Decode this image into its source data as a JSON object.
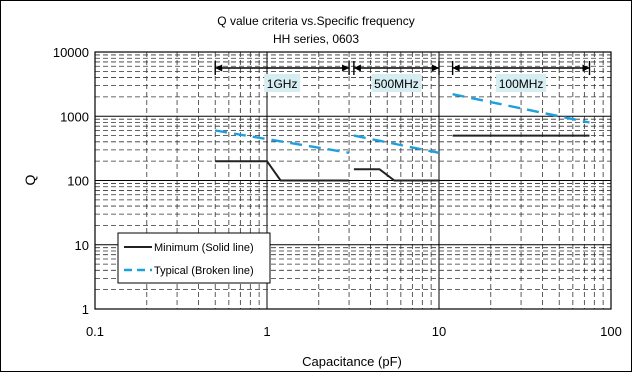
{
  "chart_data": {
    "type": "line",
    "title": "Q value criteria vs.Specific frequency",
    "subtitle": "HH series, 0603",
    "xlabel": "Capacitance (pF)",
    "ylabel": "Q",
    "xscale": "log",
    "yscale": "log",
    "xlim": [
      0.1,
      100
    ],
    "ylim": [
      1,
      10000
    ],
    "x_ticks": [
      {
        "value": 0.1,
        "label": "0.1"
      },
      {
        "value": 1,
        "label": "1"
      },
      {
        "value": 10,
        "label": "10"
      },
      {
        "value": 100,
        "label": "100"
      }
    ],
    "y_ticks": [
      {
        "value": 1,
        "label": "1"
      },
      {
        "value": 10,
        "label": "10"
      },
      {
        "value": 100,
        "label": "100"
      },
      {
        "value": 1000,
        "label": "1000"
      },
      {
        "value": 10000,
        "label": "10000"
      }
    ],
    "grid": true,
    "legend_position": "bottom-left",
    "frequency_ranges": [
      {
        "label": "1GHz",
        "x": [
          0.5,
          3
        ]
      },
      {
        "label": "500MHz",
        "x": [
          3.2,
          10
        ]
      },
      {
        "label": "100MHz",
        "x": [
          12,
          75
        ]
      }
    ],
    "series": [
      {
        "name": "Minimum (Solid line)",
        "style": "solid",
        "color": "#222222",
        "segments": [
          [
            [
              0.5,
              200
            ],
            [
              1,
              200
            ],
            [
              1.2,
              100
            ],
            [
              3,
              100
            ]
          ],
          [
            [
              3.2,
              150
            ],
            [
              4.5,
              150
            ],
            [
              5.5,
              100
            ],
            [
              10,
              100
            ]
          ],
          [
            [
              12,
              500
            ],
            [
              75,
              500
            ]
          ]
        ]
      },
      {
        "name": "Typical (Broken line)",
        "style": "dashed",
        "color": "#1f9fdc",
        "segments": [
          [
            [
              0.5,
              600
            ],
            [
              3,
              270
            ]
          ],
          [
            [
              3.2,
              500
            ],
            [
              10,
              270
            ]
          ],
          [
            [
              12,
              2200
            ],
            [
              75,
              800
            ]
          ]
        ]
      }
    ]
  }
}
